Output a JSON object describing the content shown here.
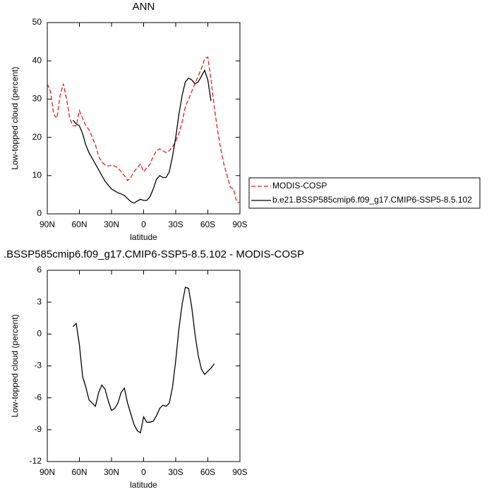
{
  "chart_data": [
    {
      "type": "line",
      "title": "ANN",
      "x_label": "latitude",
      "y_label": "Low-topped cloud (percent)",
      "x": [
        90,
        87,
        84,
        81,
        78,
        75,
        72,
        69,
        66,
        63,
        60,
        57,
        54,
        51,
        48,
        45,
        42,
        39,
        36,
        33,
        30,
        27,
        24,
        21,
        18,
        15,
        12,
        9,
        6,
        3,
        0,
        -3,
        -6,
        -9,
        -12,
        -15,
        -18,
        -21,
        -24,
        -27,
        -30,
        -33,
        -36,
        -39,
        -42,
        -45,
        -48,
        -51,
        -54,
        -57,
        -60,
        -63,
        -66,
        -69,
        -72,
        -75,
        -78,
        -81,
        -84,
        -87,
        -90
      ],
      "series": [
        {
          "name": "MODIS-COSP",
          "color": "#e41a1c",
          "dash": true,
          "values": [
            34,
            32,
            26,
            25,
            31,
            34,
            30,
            25,
            23,
            23,
            27,
            25,
            23,
            22,
            20,
            18,
            15,
            13.5,
            12.8,
            12.5,
            12.7,
            12.5,
            12,
            11,
            10,
            8.7,
            9.5,
            11,
            12,
            13,
            11,
            12,
            13,
            15,
            16.5,
            17,
            16.5,
            16,
            16.5,
            17.5,
            19,
            21,
            24,
            28,
            30,
            32,
            34,
            36,
            38,
            40.5,
            41,
            35,
            28,
            22,
            17,
            13,
            10,
            7,
            6.5,
            3,
            3
          ]
        },
        {
          "name": "b.e21.BSSP585cmip6.f09_g17.CMIP6-SSP5-8.5.102",
          "color": "#000000",
          "dash": false,
          "values": [
            null,
            null,
            null,
            null,
            null,
            null,
            null,
            null,
            24.5,
            23.5,
            23,
            21,
            18,
            16,
            14.5,
            13,
            11.5,
            10,
            8.5,
            7.5,
            6.5,
            6,
            5.5,
            5.2,
            4.8,
            4,
            3.2,
            2.8,
            3.3,
            3.8,
            3.5,
            3.5,
            4.5,
            6.5,
            9,
            10,
            9.5,
            9.5,
            11,
            15,
            20,
            26,
            31,
            34.5,
            35.5,
            35,
            34,
            34.5,
            36,
            37.5,
            35,
            29.5,
            null,
            null,
            null,
            null,
            null,
            null,
            null,
            null,
            null
          ]
        }
      ],
      "xlim": [
        90,
        -90
      ],
      "xticks": [
        {
          "value": 90,
          "label": "90N"
        },
        {
          "value": 60,
          "label": "60N"
        },
        {
          "value": 30,
          "label": "30N"
        },
        0,
        {
          "value": -30,
          "label": "30S"
        },
        {
          "value": -60,
          "label": "60S"
        },
        {
          "value": -90,
          "label": "90S"
        }
      ],
      "ylim": [
        0,
        50
      ],
      "yticks": [
        0,
        10,
        20,
        30,
        40,
        50
      ],
      "legend": "right"
    },
    {
      "type": "line",
      "title": ".BSSP585cmip6.f09_g17.CMIP6-SSP5-8.5.102 - MODIS-COSP",
      "x_label": "latitude",
      "y_label": "Low-topped cloud (percent)",
      "x": [
        66,
        63,
        60,
        57,
        54,
        51,
        48,
        45,
        42,
        39,
        36,
        33,
        30,
        27,
        24,
        21,
        18,
        15,
        12,
        9,
        6,
        3,
        0,
        -3,
        -6,
        -9,
        -12,
        -15,
        -18,
        -21,
        -24,
        -27,
        -30,
        -33,
        -36,
        -39,
        -42,
        -45,
        -48,
        -51,
        -54,
        -57,
        -60,
        -63,
        -66
      ],
      "series": [
        {
          "color": "#000000",
          "dash": false,
          "values": [
            0.7,
            1.0,
            -1,
            -4,
            -5,
            -6.2,
            -6.5,
            -6.8,
            -5.5,
            -4.8,
            -5.2,
            -6.3,
            -7.2,
            -7,
            -6.5,
            -5.5,
            -5.1,
            -6.5,
            -7.5,
            -8.5,
            -9.1,
            -9.3,
            -7.8,
            -8.3,
            -8.3,
            -8.2,
            -7.7,
            -7,
            -6.7,
            -6.8,
            -6.5,
            -5,
            -2.5,
            0.5,
            2.8,
            4.4,
            4.3,
            2.5,
            0,
            -2,
            -3.3,
            -3.8,
            -3.5,
            -3.2,
            -2.8
          ]
        }
      ],
      "xlim": [
        90,
        -90
      ],
      "xticks": [
        {
          "value": 90,
          "label": "90N"
        },
        {
          "value": 60,
          "label": "60N"
        },
        {
          "value": 30,
          "label": "30N"
        },
        0,
        {
          "value": -30,
          "label": "30S"
        },
        {
          "value": -60,
          "label": "60S"
        },
        {
          "value": -90,
          "label": "90S"
        }
      ],
      "ylim": [
        -12,
        6
      ],
      "yticks": [
        -12,
        -9,
        -6,
        -3,
        0,
        3,
        6
      ]
    }
  ]
}
